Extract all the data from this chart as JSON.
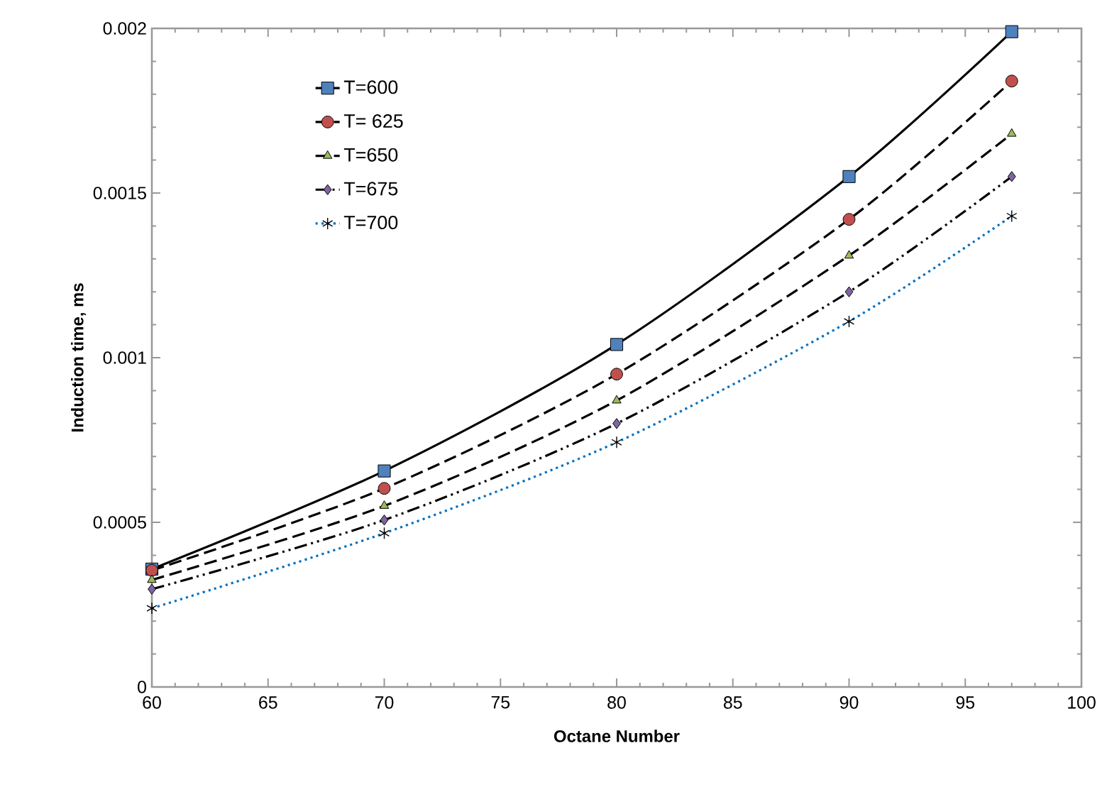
{
  "chart_data": {
    "type": "line",
    "xlabel": "Octane Number",
    "ylabel": "Induction time, ms",
    "x": [
      60,
      70,
      80,
      90,
      97
    ],
    "series": [
      {
        "name": "T=600",
        "color": "#4f81bd",
        "marker": "square",
        "line_style": "solid",
        "values": [
          0.000358,
          0.000656,
          0.00104,
          0.00155,
          0.00199
        ]
      },
      {
        "name": "T= 625",
        "color": "#c0504d",
        "marker": "circle",
        "line_style": "dashed",
        "values": [
          0.000354,
          0.000603,
          0.00095,
          0.00142,
          0.00184
        ]
      },
      {
        "name": "T=650",
        "color": "#9bbb59",
        "marker": "triangle",
        "line_style": "dashed",
        "values": [
          0.000325,
          0.00055,
          0.00087,
          0.00131,
          0.00168
        ]
      },
      {
        "name": "T=675",
        "color": "#8064a2",
        "marker": "diamond",
        "line_style": "dashdotted",
        "values": [
          0.000297,
          0.000507,
          0.0008,
          0.0012,
          0.00155
        ]
      },
      {
        "name": "T=700",
        "color": "#0070c0",
        "marker": "cross",
        "line_style": "dotted",
        "values": [
          0.000239,
          0.000467,
          0.000743,
          0.00111,
          0.00143
        ]
      }
    ],
    "xlim": [
      60,
      100
    ],
    "xticks": [
      60,
      65,
      70,
      75,
      80,
      85,
      90,
      95,
      100
    ],
    "ylim": [
      0,
      0.002
    ],
    "yticks": [
      0,
      0.0005,
      0.001,
      0.0015,
      0.002
    ],
    "grid": false,
    "legend": "top left"
  }
}
